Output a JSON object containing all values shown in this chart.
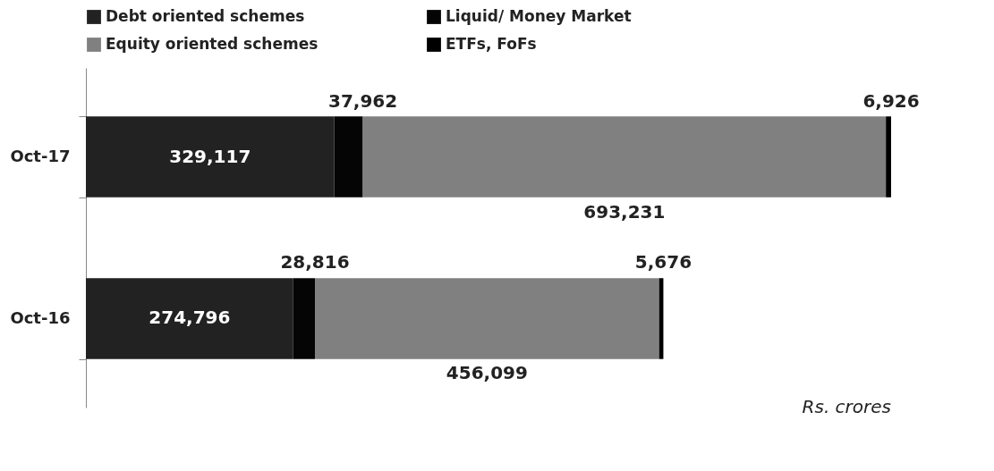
{
  "chart_data": {
    "type": "bar",
    "orientation": "horizontal",
    "stacked": true,
    "legend": "top left",
    "grid": false,
    "categories": [
      "Oct-17",
      "Oct-16"
    ],
    "series": [
      {
        "name": "Debt oriented schemes",
        "color": "#222222",
        "values": [
          329117,
          274796
        ],
        "value_labels": [
          "329,117",
          "274,796"
        ]
      },
      {
        "name": "Liquid/ Money Market",
        "color": "#050505",
        "values": [
          37962,
          28816
        ],
        "value_labels": [
          "37,962",
          "28,816"
        ]
      },
      {
        "name": "Equity oriented schemes",
        "color": "#808080",
        "values": [
          693231,
          456099
        ],
        "value_labels": [
          "693,231",
          "456,099"
        ]
      },
      {
        "name": "ETFs, FoFs",
        "color": "#000000",
        "values": [
          6926,
          5676
        ],
        "value_labels": [
          "6,926",
          "5,676"
        ]
      }
    ],
    "annotations": [
      "Rs. crores"
    ]
  }
}
